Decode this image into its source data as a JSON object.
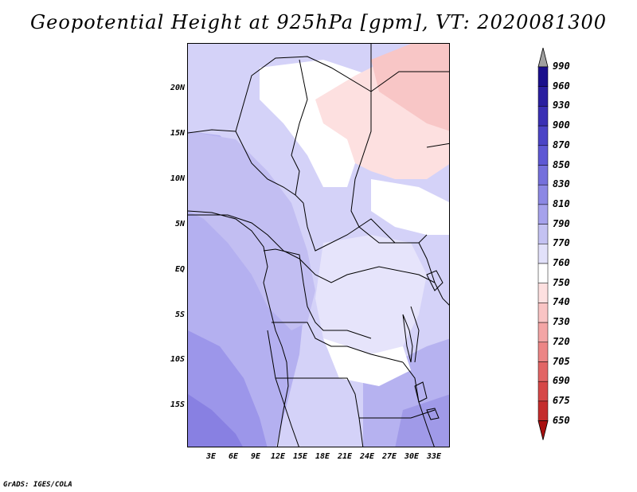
{
  "title": "Geopotential Height at 925hPa [gpm], VT: 2020081300",
  "credit": "GrADS: IGES/COLA",
  "map": {
    "variable": "Geopotential Height",
    "level": "925hPa",
    "units": "gpm",
    "valid_time": "2020081300",
    "lat_labels": [
      "20N",
      "15N",
      "10N",
      "5N",
      "EQ",
      "5S",
      "10S",
      "15S"
    ],
    "lon_labels": [
      "3E",
      "6E",
      "9E",
      "12E",
      "15E",
      "18E",
      "21E",
      "24E",
      "27E",
      "30E",
      "33E"
    ]
  },
  "legend": {
    "levels": [
      "990",
      "960",
      "930",
      "900",
      "870",
      "850",
      "830",
      "810",
      "790",
      "770",
      "760",
      "750",
      "740",
      "730",
      "720",
      "705",
      "690",
      "675",
      "650"
    ],
    "colors": [
      "#1a0f8c",
      "#2a1fa0",
      "#3a30b4",
      "#4b44c6",
      "#5e58d4",
      "#7570dc",
      "#8c88e4",
      "#a6a2ec",
      "#c4c2f2",
      "#e2e1fa",
      "#ffffff",
      "#fde0e0",
      "#f9c4c4",
      "#f3a5a5",
      "#ec8585",
      "#e26565",
      "#d64747",
      "#c42c2c",
      "#a81010"
    ]
  },
  "palette": {
    "ocean_deep": "#8e86e6",
    "ocean_mid": "#aaa4ee",
    "land_low": "#c6c2f4",
    "land_mid": "#d8d6f8",
    "land_high": "#ffffff",
    "warm_light": "#fde2e2",
    "warm_mid": "#f8c4c4",
    "border": "#000000"
  }
}
